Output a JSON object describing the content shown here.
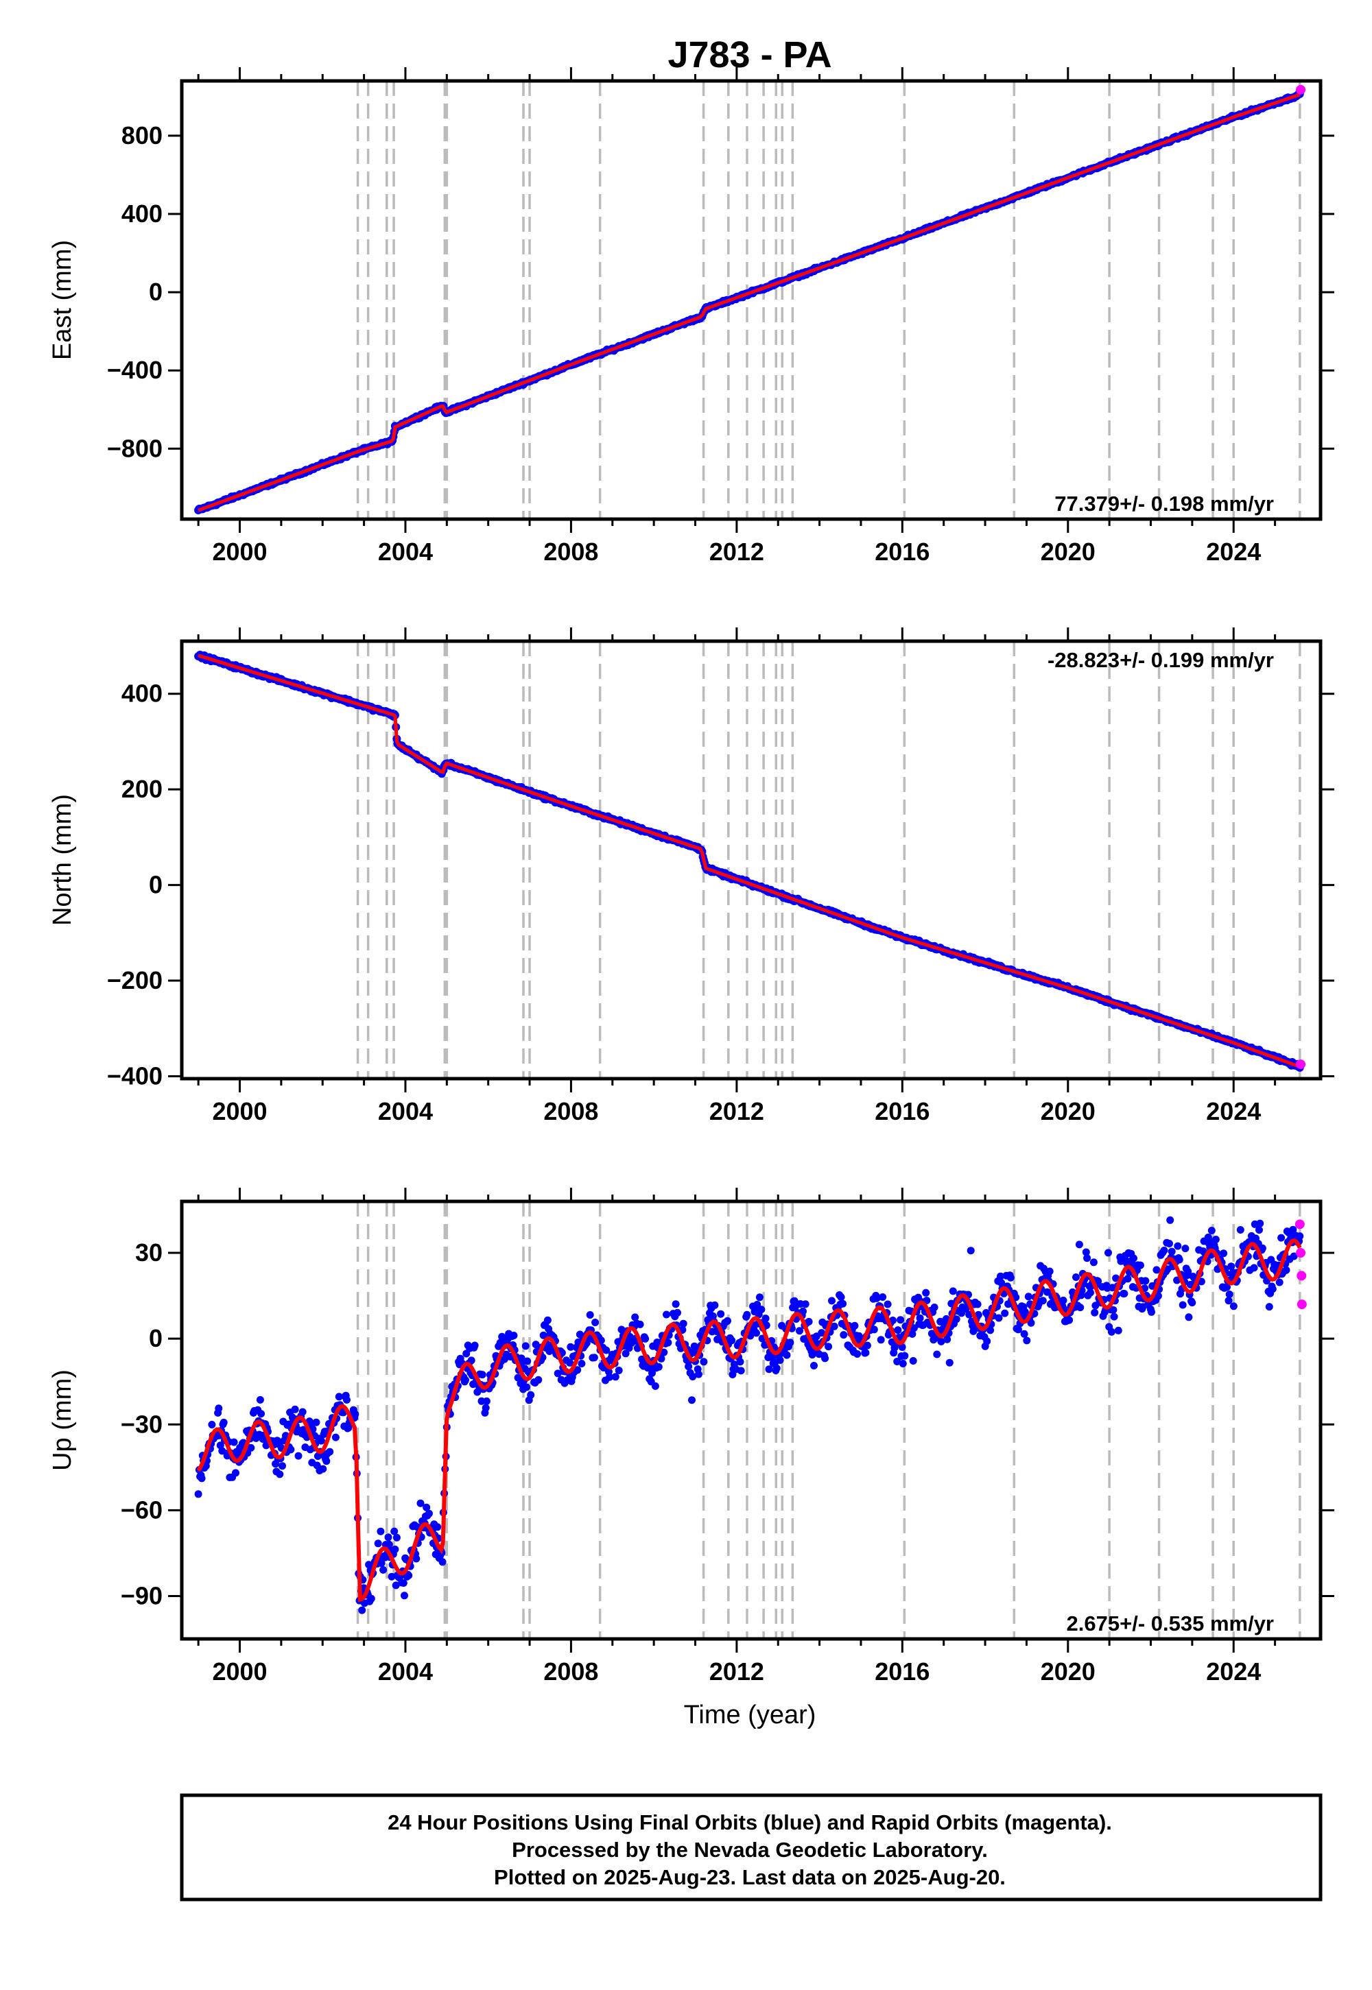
{
  "title": "J783 - PA",
  "colors": {
    "final_orbits": "#0000ff",
    "rapid_orbits": "#ff00ff",
    "model_line": "#ff0000",
    "step_lines": "#bbbbbb"
  },
  "chart_data": [
    {
      "type": "scatter",
      "panel": "east",
      "ylabel": "East (mm)",
      "xlim": [
        1998.6,
        2026.1
      ],
      "ylim": [
        -1160,
        1080
      ],
      "xticks": [
        "2000",
        "2004",
        "2008",
        "2012",
        "2016",
        "2020",
        "2024"
      ],
      "yticks": [
        "-800",
        "-400",
        "0",
        "400",
        "800"
      ],
      "rate_label": "77.379+/- 0.198 mm/yr",
      "rate_position": "bottom-right",
      "step_epochs": [
        2002.85,
        2003.1,
        2003.55,
        2003.72,
        2004.95,
        2005.0,
        2006.85,
        2007.0,
        2008.7,
        2011.2,
        2011.8,
        2012.25,
        2012.65,
        2012.95,
        2013.1,
        2013.35,
        2016.05,
        2018.7,
        2021.0,
        2022.2,
        2023.5,
        2024.0,
        2025.6
      ],
      "series": [
        {
          "name": "Final Orbits",
          "x": [
            1999.0,
            2001.0,
            2002.85,
            2003.7,
            2003.75,
            2004.9,
            2004.98,
            2008.0,
            2011.15,
            2011.25,
            2016.0,
            2020.0,
            2024.0,
            2025.6
          ],
          "y": [
            -1115,
            -960,
            -815,
            -760,
            -690,
            -580,
            -615,
            -370,
            -125,
            -85,
            275,
            585,
            895,
            1010
          ]
        },
        {
          "name": "Rapid Orbits",
          "x": [
            2025.62
          ],
          "y": [
            1035
          ]
        }
      ]
    },
    {
      "type": "scatter",
      "panel": "north",
      "ylabel": "North (mm)",
      "xlim": [
        1998.6,
        2026.1
      ],
      "ylim": [
        -405,
        510
      ],
      "xticks": [
        "2000",
        "2004",
        "2008",
        "2012",
        "2016",
        "2020",
        "2024"
      ],
      "yticks": [
        "-400",
        "-200",
        "0",
        "200",
        "400"
      ],
      "rate_label": "-28.823+/- 0.199 mm/yr",
      "rate_position": "top-right",
      "step_epochs": [
        2002.85,
        2003.1,
        2003.55,
        2003.72,
        2004.95,
        2005.0,
        2006.85,
        2007.0,
        2008.7,
        2011.2,
        2011.8,
        2012.25,
        2012.65,
        2012.95,
        2013.1,
        2013.35,
        2016.05,
        2018.7,
        2021.0,
        2022.2,
        2023.5,
        2024.0,
        2025.6
      ],
      "series": [
        {
          "name": "Final Orbits",
          "x": [
            1999.0,
            2003.75,
            2003.8,
            2004.9,
            2004.98,
            2008.0,
            2011.15,
            2011.25,
            2016.0,
            2020.0,
            2024.0,
            2025.6
          ],
          "y": [
            480,
            355,
            295,
            235,
            255,
            165,
            75,
            35,
            -110,
            -215,
            -330,
            -380
          ]
        },
        {
          "name": "Rapid Orbits",
          "x": [
            2025.62
          ],
          "y": [
            -375
          ]
        }
      ]
    },
    {
      "type": "scatter",
      "panel": "up",
      "ylabel": "Up (mm)",
      "xlabel": "Time (year)",
      "xlim": [
        1998.6,
        2026.1
      ],
      "ylim": [
        -105,
        48
      ],
      "xticks": [
        "2000",
        "2004",
        "2008",
        "2012",
        "2016",
        "2020",
        "2024"
      ],
      "yticks": [
        "-90",
        "-60",
        "-30",
        "0",
        "30"
      ],
      "rate_label": "2.675+/- 0.535 mm/yr",
      "rate_position": "bottom-right",
      "step_epochs": [
        2002.85,
        2003.1,
        2003.55,
        2003.72,
        2004.95,
        2005.0,
        2006.85,
        2007.0,
        2008.7,
        2011.2,
        2011.8,
        2012.25,
        2012.65,
        2012.95,
        2013.1,
        2013.35,
        2016.05,
        2018.7,
        2021.0,
        2022.2,
        2023.5,
        2024.0,
        2025.6
      ],
      "series": [
        {
          "name": "Final Orbits",
          "x": [
            1999.0,
            2000.0,
            2001.0,
            2002.0,
            2002.8,
            2002.9,
            2004.0,
            2004.9,
            2005.0,
            2006.0,
            2008.0,
            2010.0,
            2012.0,
            2014.0,
            2016.0,
            2018.0,
            2020.0,
            2022.0,
            2024.0,
            2025.6
          ],
          "y": [
            -40,
            -36,
            -35,
            -33,
            -28,
            -85,
            -75,
            -68,
            -20,
            -10,
            -5,
            -2,
            0,
            3,
            5,
            10,
            15,
            20,
            26,
            28
          ]
        },
        {
          "name": "Rapid Orbits",
          "x": [
            2025.6,
            2025.62,
            2025.64,
            2025.65
          ],
          "y": [
            40,
            30,
            22,
            12
          ]
        }
      ]
    }
  ],
  "footer": {
    "line1": "24 Hour Positions Using Final Orbits (blue) and Rapid Orbits (magenta).",
    "line2": "Processed by the Nevada Geodetic Laboratory.",
    "line3": "Plotted on 2025-Aug-23. Last data on 2025-Aug-20."
  }
}
